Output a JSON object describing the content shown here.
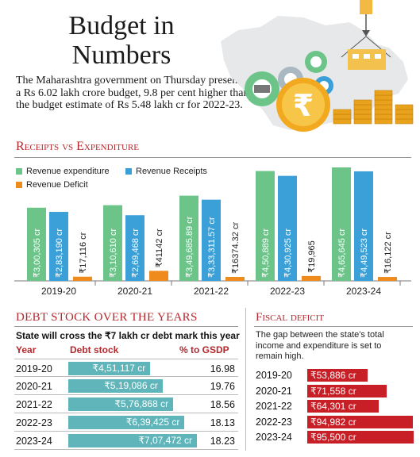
{
  "header": {
    "title_line1": "Budget in",
    "title_line2": "Numbers",
    "intro": "The Maharashtra government on Thursday presented a Rs 6.02 lakh crore budget, 9.8 per cent higher than the budget estimate of Rs 5.48 lakh cr for 2022-23."
  },
  "receipts_section": {
    "heading": "Receipts vs Expenditure"
  },
  "colors": {
    "revenue_expenditure": "#6cc488",
    "revenue_receipts": "#3b9fd8",
    "revenue_deficit": "#ef8a1d",
    "accent_red": "#b3282d",
    "debt_bar": "#5fb5b9",
    "fiscal_bar": "#c81e25"
  },
  "chart_data": {
    "type": "bar",
    "categories": [
      "2019-20",
      "2020-21",
      "2021-22",
      "2022-23",
      "2023-24"
    ],
    "series": [
      {
        "name": "Revenue expenditure",
        "values": [
          300305,
          310610,
          349685.89,
          450889,
          465645
        ],
        "labels": [
          "₹3,00,305 cr",
          "₹3,10,610 cr",
          "₹3,49,685.89 cr",
          "₹4,50,889 cr",
          "₹4,65,645 cr"
        ]
      },
      {
        "name": "Revenue Receipts",
        "values": [
          283190,
          269468,
          333311.57,
          430925,
          449523
        ],
        "labels": [
          "₹2,83,190 cr",
          "₹2,69,468 cr",
          "₹3,33,311.57 cr",
          "₹4,30,925 cr",
          "₹4,49,523 cr"
        ]
      },
      {
        "name": "Revenue Deficit",
        "values": [
          17116,
          41142,
          16374.32,
          19965,
          16122
        ],
        "labels": [
          "₹17,116 cr",
          "₹41142 cr",
          "₹16374.32 cr",
          "₹19,965",
          "₹16,122 cr"
        ]
      }
    ],
    "legend": "top-left"
  },
  "debt_section": {
    "heading": "Debt stock over the years",
    "subtitle": "State will cross the ₹7 lakh cr debt mark this year",
    "col_year": "Year",
    "col_debt": "Debt stock",
    "col_pct": "% to GSDP",
    "rows": [
      {
        "year": "2019-20",
        "debt": "₹4,51,117 cr",
        "value": 451117,
        "pct": "16.98"
      },
      {
        "year": "2020-21",
        "debt": "₹5,19,086 cr",
        "value": 519086,
        "pct": "19.76"
      },
      {
        "year": "2021-22",
        "debt": "₹5,76,868 cr",
        "value": 576868,
        "pct": "18.56"
      },
      {
        "year": "2022-23",
        "debt": "₹6,39,425 cr",
        "value": 639425,
        "pct": "18.13"
      },
      {
        "year": "2023-24",
        "debt": "₹7,07,472 cr",
        "value": 707472,
        "pct": "18.23"
      }
    ]
  },
  "fiscal_section": {
    "heading": "Fiscal deficit",
    "text": "The gap between the state's total income and expenditure is set to remain high.",
    "rows": [
      {
        "year": "2019-20",
        "label": "₹53,886 cr",
        "value": 53886
      },
      {
        "year": "2020-21",
        "label": "₹71,558 cr",
        "value": 71558
      },
      {
        "year": "2021-22",
        "label": "₹64,301 cr",
        "value": 64301
      },
      {
        "year": "2022-23",
        "label": "₹94,982 cr",
        "value": 94982
      },
      {
        "year": "2023-24",
        "label": "₹95,500 cr",
        "value": 95500
      }
    ]
  }
}
